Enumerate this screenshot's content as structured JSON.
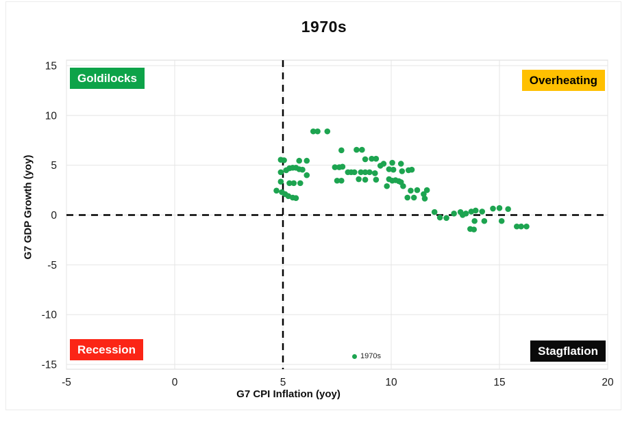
{
  "page": {
    "background": "#ffffff",
    "canvas_border": "#ebebeb"
  },
  "chart_data": {
    "type": "scatter",
    "title": "1970s",
    "xlabel": "G7 CPI Inflation (yoy)",
    "ylabel": "G7 GDP Growth (yoy)",
    "xlim": [
      -5,
      20
    ],
    "ylim": [
      -15,
      15
    ],
    "xticks": [
      -5,
      0,
      5,
      10,
      15,
      20
    ],
    "yticks": [
      -15,
      -10,
      -5,
      0,
      5,
      10,
      15
    ],
    "grid": true,
    "gridline_color": "#e4e4e4",
    "plot_border_color": "#d9d9d9",
    "tick_label_color": "#1a1a1a",
    "reference_lines": [
      {
        "axis": "x",
        "value": 5,
        "style": "dashed",
        "color": "#000000"
      },
      {
        "axis": "y",
        "value": 0,
        "style": "dashed",
        "color": "#000000"
      }
    ],
    "legend": {
      "position": "inside-bottom-center",
      "label": "1970s",
      "marker_color": "#1da450"
    },
    "quadrant_labels": [
      {
        "text": "Goldilocks",
        "bg_color": "#0da349",
        "text_color": "#ffffff",
        "position": "top-left"
      },
      {
        "text": "Overheating",
        "bg_color": "#ffc000",
        "text_color": "#000000",
        "position": "top-right"
      },
      {
        "text": "Recession",
        "bg_color": "#fb2516",
        "text_color": "#ffffff",
        "position": "bottom-left"
      },
      {
        "text": "Stagflation",
        "bg_color": "#0a0a0a",
        "text_color": "#ffffff",
        "position": "bottom-right"
      }
    ],
    "series": [
      {
        "name": "1970s",
        "color": "#1da450",
        "marker": "circle",
        "points": [
          [
            4.9,
            5.55
          ],
          [
            5.05,
            5.5
          ],
          [
            5.75,
            5.45
          ],
          [
            6.1,
            5.45
          ],
          [
            4.9,
            4.3
          ],
          [
            5.15,
            4.5
          ],
          [
            5.3,
            4.7
          ],
          [
            5.45,
            4.75
          ],
          [
            5.6,
            4.75
          ],
          [
            5.75,
            4.6
          ],
          [
            5.9,
            4.55
          ],
          [
            6.1,
            4.0
          ],
          [
            4.9,
            3.35
          ],
          [
            5.3,
            3.2
          ],
          [
            5.5,
            3.2
          ],
          [
            5.8,
            3.2
          ],
          [
            4.7,
            2.45
          ],
          [
            4.95,
            2.3
          ],
          [
            5.1,
            2.1
          ],
          [
            5.25,
            1.9
          ],
          [
            5.45,
            1.75
          ],
          [
            5.6,
            1.7
          ],
          [
            6.4,
            8.4
          ],
          [
            6.6,
            8.4
          ],
          [
            7.05,
            8.4
          ],
          [
            7.7,
            6.5
          ],
          [
            8.4,
            6.55
          ],
          [
            8.65,
            6.55
          ],
          [
            7.4,
            4.8
          ],
          [
            7.6,
            4.8
          ],
          [
            7.75,
            4.85
          ],
          [
            8.0,
            4.3
          ],
          [
            8.15,
            4.3
          ],
          [
            8.3,
            4.3
          ],
          [
            8.6,
            4.3
          ],
          [
            8.8,
            4.3
          ],
          [
            9.0,
            4.3
          ],
          [
            9.25,
            4.2
          ],
          [
            8.8,
            5.6
          ],
          [
            9.1,
            5.65
          ],
          [
            9.3,
            5.65
          ],
          [
            7.5,
            3.45
          ],
          [
            7.7,
            3.45
          ],
          [
            8.5,
            3.6
          ],
          [
            8.8,
            3.55
          ],
          [
            9.3,
            3.55
          ],
          [
            9.5,
            4.95
          ],
          [
            9.65,
            5.15
          ],
          [
            10.05,
            5.25
          ],
          [
            10.45,
            5.15
          ],
          [
            9.9,
            4.6
          ],
          [
            10.1,
            4.55
          ],
          [
            10.5,
            4.4
          ],
          [
            10.8,
            4.5
          ],
          [
            10.95,
            4.55
          ],
          [
            9.9,
            3.6
          ],
          [
            10.05,
            3.45
          ],
          [
            10.2,
            3.5
          ],
          [
            10.35,
            3.4
          ],
          [
            10.45,
            3.3
          ],
          [
            9.8,
            2.9
          ],
          [
            10.55,
            2.9
          ],
          [
            10.9,
            2.45
          ],
          [
            11.2,
            2.5
          ],
          [
            11.5,
            2.1
          ],
          [
            11.65,
            2.5
          ],
          [
            10.75,
            1.75
          ],
          [
            11.05,
            1.75
          ],
          [
            11.55,
            1.65
          ],
          [
            12.0,
            0.3
          ],
          [
            12.25,
            -0.25
          ],
          [
            12.55,
            -0.3
          ],
          [
            12.9,
            0.15
          ],
          [
            13.2,
            0.3
          ],
          [
            13.3,
            0.0
          ],
          [
            13.45,
            0.15
          ],
          [
            13.7,
            0.35
          ],
          [
            13.9,
            0.45
          ],
          [
            14.2,
            0.35
          ],
          [
            13.85,
            -0.6
          ],
          [
            14.3,
            -0.6
          ],
          [
            13.65,
            -1.4
          ],
          [
            13.82,
            -1.45
          ],
          [
            14.7,
            0.65
          ],
          [
            15.0,
            0.7
          ],
          [
            15.4,
            0.6
          ],
          [
            15.1,
            -0.6
          ],
          [
            15.8,
            -1.15
          ],
          [
            16.0,
            -1.15
          ],
          [
            16.25,
            -1.15
          ]
        ]
      }
    ]
  }
}
